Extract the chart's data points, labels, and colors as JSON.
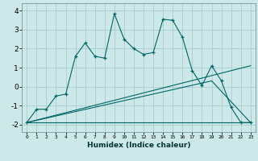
{
  "xlabel": "Humidex (Indice chaleur)",
  "ylabel": "",
  "xlim": [
    -0.5,
    23.5
  ],
  "ylim": [
    -2.4,
    4.4
  ],
  "xticks": [
    0,
    1,
    2,
    3,
    4,
    5,
    6,
    7,
    8,
    9,
    10,
    11,
    12,
    13,
    14,
    15,
    16,
    17,
    18,
    19,
    20,
    21,
    22,
    23
  ],
  "yticks": [
    -2,
    -1,
    0,
    1,
    2,
    3,
    4
  ],
  "bg_color": "#cce8e8",
  "line_color": "#006666",
  "grid_color": "#aacccc",
  "line1_x": [
    0,
    1,
    2,
    3,
    4,
    5,
    6,
    7,
    8,
    9,
    10,
    11,
    12,
    13,
    14,
    15,
    16,
    17,
    18,
    19,
    20,
    21,
    22,
    23
  ],
  "line1_y": [
    -1.9,
    -1.2,
    -1.2,
    -0.5,
    -0.4,
    1.6,
    2.3,
    1.6,
    1.5,
    3.85,
    2.5,
    2.0,
    1.7,
    1.8,
    3.55,
    3.5,
    2.6,
    0.85,
    0.05,
    1.1,
    0.3,
    -1.1,
    -1.9,
    -1.9
  ],
  "line2_x": [
    0,
    23
  ],
  "line2_y": [
    -1.9,
    1.1
  ],
  "line3_x": [
    0,
    19,
    23
  ],
  "line3_y": [
    -1.9,
    0.3,
    -1.9
  ],
  "line4_x": [
    0,
    23
  ],
  "line4_y": [
    -1.9,
    -1.9
  ]
}
